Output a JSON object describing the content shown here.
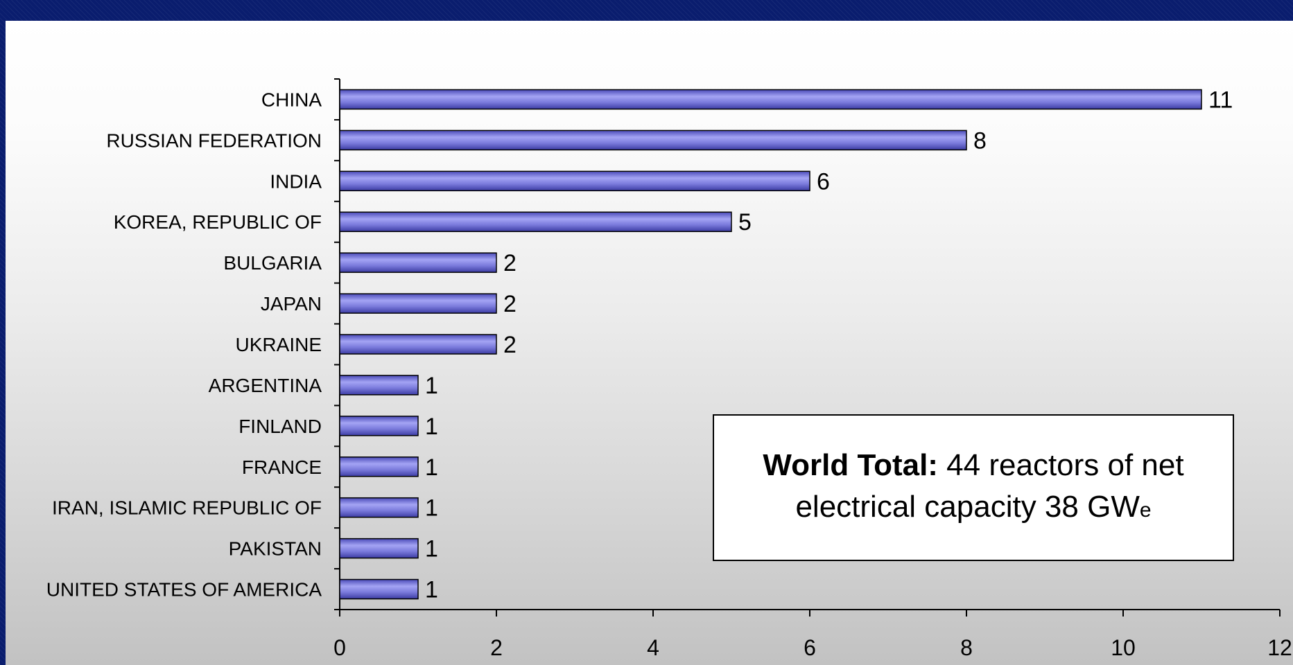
{
  "chart_data": {
    "type": "bar",
    "orientation": "horizontal",
    "categories": [
      "CHINA",
      "RUSSIAN FEDERATION",
      "INDIA",
      "KOREA, REPUBLIC OF",
      "BULGARIA",
      "JAPAN",
      "UKRAINE",
      "ARGENTINA",
      "FINLAND",
      "FRANCE",
      "IRAN, ISLAMIC REPUBLIC OF",
      "PAKISTAN",
      "UNITED STATES OF AMERICA"
    ],
    "values": [
      11,
      8,
      6,
      5,
      2,
      2,
      2,
      1,
      1,
      1,
      1,
      1,
      1
    ],
    "xlim": [
      0,
      12
    ],
    "xticks": [
      0,
      2,
      4,
      6,
      8,
      10,
      12
    ],
    "grid": false,
    "bar_color": "#7b7bdc",
    "annotation": {
      "bold": "World Total:",
      "line1_rest": " 44 reactors of net",
      "line2_main": "electrical capacity 38 GW",
      "line2_sub": "e"
    }
  }
}
